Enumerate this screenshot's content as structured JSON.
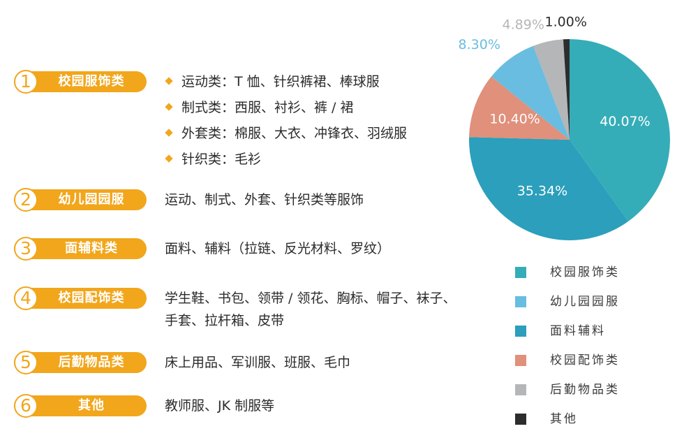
{
  "categories": [
    {
      "number": "1",
      "label": "校园服饰类",
      "bullets": [
        "运动类：T 恤、针织裤裙、棒球服",
        "制式类：西服、衬衫、裤 / 裙",
        "外套类：棉服、大衣、冲锋衣、羽绒服",
        "针织类：毛衫"
      ]
    },
    {
      "number": "2",
      "label": "幼儿园园服",
      "desc_lines": [
        "运动、制式、外套、针织类等服饰"
      ]
    },
    {
      "number": "3",
      "label": "面辅料类",
      "desc_lines": [
        "面料、辅料（拉链、反光材料、罗纹）"
      ]
    },
    {
      "number": "4",
      "label": "校园配饰类",
      "desc_lines": [
        "学生鞋、书包、领带 / 领花、胸标、帽子、袜子、",
        "手套、拉杆箱、皮带"
      ]
    },
    {
      "number": "5",
      "label": "后勤物品类",
      "desc_lines": [
        "床上用品、军训服、班服、毛巾"
      ]
    },
    {
      "number": "6",
      "label": "其他",
      "desc_lines": [
        "教师服、JK 制服等"
      ]
    }
  ],
  "colors": {
    "badge": "#f2a61c",
    "badge_text": "#ffffff",
    "series": [
      "#35adb8",
      "#69bde0",
      "#2b9fbb",
      "#e0907b",
      "#b5b6b7",
      "#2d2d2d"
    ]
  },
  "chart_data": {
    "type": "pie",
    "title": "",
    "start_angle_deg": 0,
    "direction": "clockwise",
    "slices": [
      {
        "label": "校园服饰类",
        "value": 40.07,
        "display": "40.07%",
        "color": "#35adb8",
        "label_inside": true
      },
      {
        "label": "面料辅料",
        "value": 35.34,
        "display": "35.34%",
        "color": "#2b9fbb",
        "label_inside": true
      },
      {
        "label": "校园配饰类",
        "value": 10.4,
        "display": "10.40%",
        "color": "#e0907b",
        "label_inside": true
      },
      {
        "label": "幼儿园园服",
        "value": 8.3,
        "display": "8.30%",
        "color": "#69bde0",
        "label_inside": false
      },
      {
        "label": "后勤物品类",
        "value": 4.89,
        "display": "4.89%",
        "color": "#b5b6b7",
        "label_inside": false
      },
      {
        "label": "其他",
        "value": 1.0,
        "display": "1.00%",
        "color": "#2d2d2d",
        "label_inside": false
      }
    ],
    "legend": {
      "placement": "bottom-right",
      "entries": [
        {
          "label": "校园服饰类",
          "color": "#35adb8"
        },
        {
          "label": "幼儿园园服",
          "color": "#69bde0"
        },
        {
          "label": "面料辅料",
          "color": "#2b9fbb"
        },
        {
          "label": "校园配饰类",
          "color": "#e0907b"
        },
        {
          "label": "后勤物品类",
          "color": "#b5b6b7"
        },
        {
          "label": "其他",
          "color": "#2d2d2d"
        }
      ]
    }
  }
}
